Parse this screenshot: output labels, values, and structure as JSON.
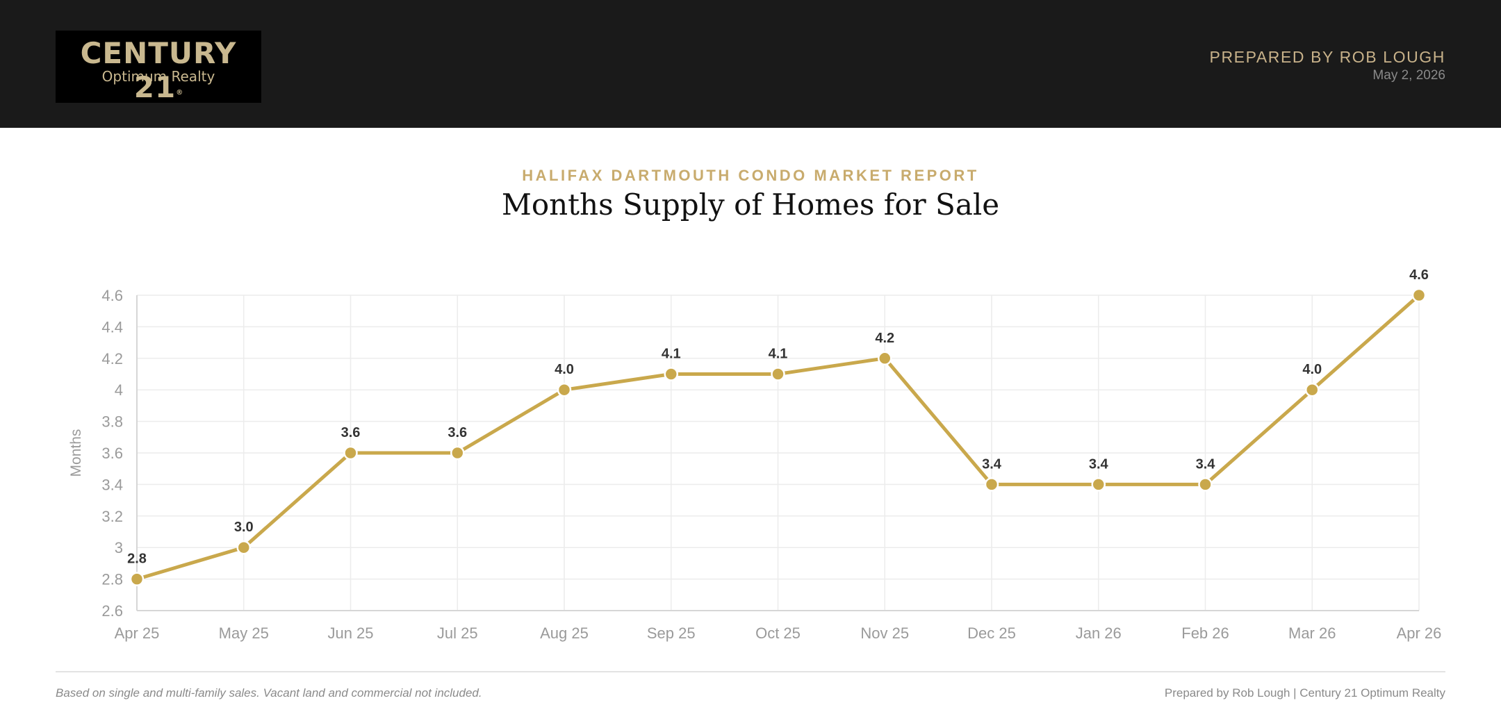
{
  "header": {
    "logo_main": "CENTURY 21",
    "logo_reg": "®",
    "logo_sub": "Optimum Realty",
    "prepared_by": "PREPARED BY ROB LOUGH",
    "date": "May 2, 2026"
  },
  "report": {
    "title": "HALIFAX DARTMOUTH CONDO MARKET REPORT"
  },
  "colors": {
    "header_bg": "#1a1a1a",
    "accent": "#c8ab6d",
    "line": "#c9a84c",
    "grid": "#ececec",
    "tick_text": "#9a9a9a",
    "data_label": "#333333"
  },
  "chart_data": {
    "type": "line",
    "title": "Months Supply of Homes for Sale",
    "xlabel": "",
    "ylabel": "Months",
    "categories": [
      "Apr 25",
      "May 25",
      "Jun 25",
      "Jul 25",
      "Aug 25",
      "Sep 25",
      "Oct 25",
      "Nov 25",
      "Dec 25",
      "Jan 26",
      "Feb 26",
      "Mar 26",
      "Apr 26"
    ],
    "values": [
      2.8,
      3.0,
      3.6,
      3.6,
      4.0,
      4.1,
      4.1,
      4.2,
      3.4,
      3.4,
      3.4,
      4.0,
      4.6
    ],
    "data_labels": [
      "2.8",
      "3.0",
      "3.6",
      "3.6",
      "4.0",
      "4.1",
      "4.1",
      "4.2",
      "3.4",
      "3.4",
      "3.4",
      "4.0",
      "4.6"
    ],
    "ylim": [
      2.6,
      4.6
    ],
    "yticks": [
      2.6,
      2.8,
      3,
      3.2,
      3.4,
      3.6,
      3.8,
      4,
      4.2,
      4.4,
      4.6
    ],
    "ytick_labels": [
      "2.6",
      "2.8",
      "3",
      "3.2",
      "3.4",
      "3.6",
      "3.8",
      "4",
      "4.2",
      "4.4",
      "4.6"
    ],
    "grid": true,
    "legend": "none"
  },
  "footer": {
    "note": "Based on single and multi-family sales. Vacant land and commercial not included.",
    "credit": "Prepared by Rob Lough | Century 21 Optimum Realty"
  }
}
